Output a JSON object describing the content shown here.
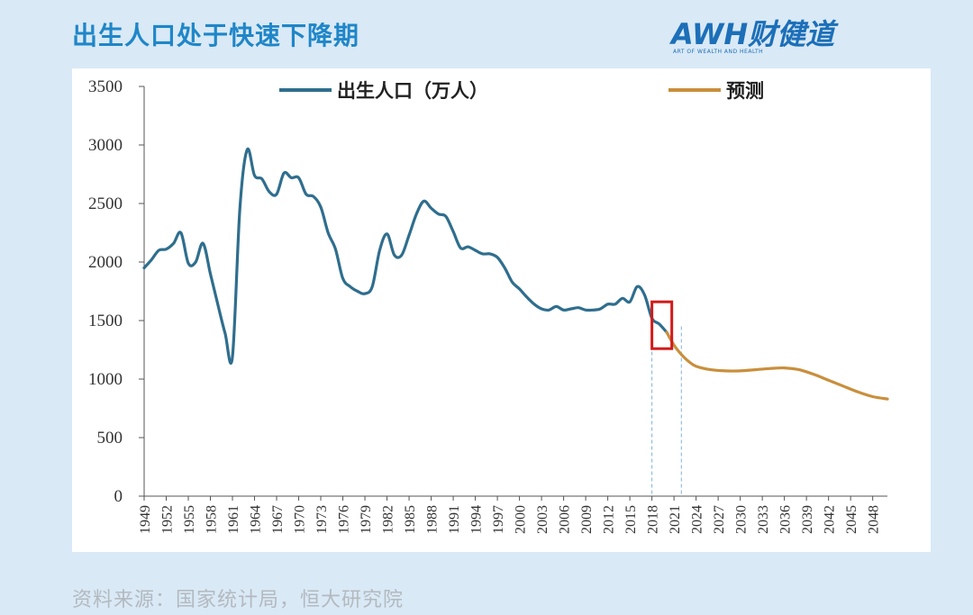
{
  "title": "出生人口处于快速下降期",
  "brand": {
    "name": "AWH财健道",
    "tagline": "ART OF WEALTH AND HEALTH"
  },
  "source": "资料来源：国家统计局，恒大研究院",
  "colors": {
    "background": "#d9e9f6",
    "title": "#1f86c8",
    "actual_series": "#2f6e8e",
    "forecast_series": "#c98f3c",
    "highlight_box": "#d21a1a",
    "guide_lines": "#7fb2e0",
    "axis": "#555555"
  },
  "chart_data": {
    "type": "line",
    "title": "",
    "xlabel": "",
    "ylabel": "",
    "ylim": [
      0,
      3500
    ],
    "yticks": [
      0,
      500,
      1000,
      1500,
      2000,
      2500,
      3000,
      3500
    ],
    "xlim": [
      1949,
      2050
    ],
    "xticks": [
      1949,
      1952,
      1955,
      1958,
      1961,
      1964,
      1967,
      1970,
      1973,
      1976,
      1979,
      1982,
      1985,
      1988,
      1991,
      1994,
      1997,
      2000,
      2003,
      2006,
      2009,
      2012,
      2015,
      2018,
      2021,
      2024,
      2027,
      2030,
      2033,
      2036,
      2039,
      2042,
      2045,
      2048
    ],
    "grid": false,
    "legend_position": "top",
    "series": [
      {
        "name": "出生人口（万人）",
        "x": [
          1949,
          1950,
          1951,
          1952,
          1953,
          1954,
          1955,
          1956,
          1957,
          1958,
          1959,
          1960,
          1961,
          1962,
          1963,
          1964,
          1965,
          1966,
          1967,
          1968,
          1969,
          1970,
          1971,
          1972,
          1973,
          1974,
          1975,
          1976,
          1977,
          1978,
          1979,
          1980,
          1981,
          1982,
          1983,
          1984,
          1985,
          1986,
          1987,
          1988,
          1989,
          1990,
          1991,
          1992,
          1993,
          1994,
          1995,
          1996,
          1997,
          1998,
          1999,
          2000,
          2001,
          2002,
          2003,
          2004,
          2005,
          2006,
          2007,
          2008,
          2009,
          2010,
          2011,
          2012,
          2013,
          2014,
          2015,
          2016,
          2017,
          2018,
          2019,
          2020
        ],
        "values": [
          1950,
          2020,
          2100,
          2110,
          2160,
          2250,
          1990,
          2000,
          2160,
          1900,
          1640,
          1390,
          1190,
          2450,
          2960,
          2740,
          2710,
          2600,
          2580,
          2760,
          2720,
          2720,
          2580,
          2560,
          2470,
          2250,
          2110,
          1860,
          1790,
          1750,
          1730,
          1790,
          2100,
          2240,
          2060,
          2060,
          2230,
          2410,
          2520,
          2460,
          2410,
          2390,
          2260,
          2120,
          2130,
          2100,
          2070,
          2070,
          2040,
          1950,
          1830,
          1770,
          1700,
          1640,
          1600,
          1590,
          1620,
          1590,
          1600,
          1610,
          1590,
          1590,
          1600,
          1640,
          1640,
          1690,
          1660,
          1790,
          1720,
          1520,
          1470,
          1400
        ]
      },
      {
        "name": "预测",
        "x": [
          2020,
          2021,
          2022,
          2023,
          2024,
          2026,
          2028,
          2030,
          2032,
          2034,
          2036,
          2038,
          2040,
          2042,
          2044,
          2046,
          2048,
          2050
        ],
        "values": [
          1400,
          1290,
          1210,
          1150,
          1110,
          1080,
          1070,
          1070,
          1080,
          1090,
          1095,
          1080,
          1040,
          990,
          940,
          890,
          850,
          830
        ]
      }
    ],
    "annotations": {
      "highlight_range": [
        2018,
        2020.7
      ],
      "guide_lines_x": [
        2018,
        2022
      ]
    }
  }
}
